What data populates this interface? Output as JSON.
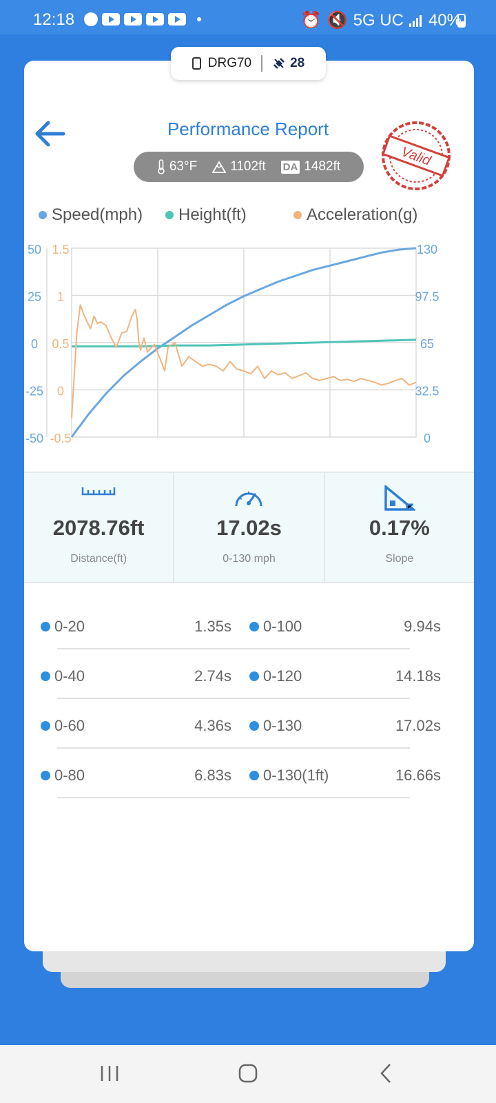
{
  "status_bar": {
    "time": "12:18",
    "network": "5G UC",
    "battery": "40%"
  },
  "device": {
    "name": "DRG70",
    "satellites": "28"
  },
  "header": {
    "title": "Performance Report",
    "stamp": "Valid"
  },
  "conditions": {
    "temperature": "63°F",
    "altitude": "1102ft",
    "da_label": "DA",
    "density_altitude": "1482ft"
  },
  "legend": {
    "speed": "Speed(mph)",
    "height": "Height(ft)",
    "acceleration": "Acceleration(g)"
  },
  "colors": {
    "speed": "#6aa7e0",
    "height": "#4fc4b8",
    "acceleration": "#f0b47e",
    "accent": "#2e7fd6"
  },
  "chart_data": {
    "type": "line",
    "axes": {
      "left_height": {
        "ticks": [
          "50",
          "25",
          "0",
          "-25",
          "-50"
        ],
        "range": [
          -50,
          50
        ]
      },
      "left_accel": {
        "ticks": [
          "1.5",
          "1",
          "0.5",
          "0",
          "-0.5"
        ],
        "range": [
          -0.5,
          1.5
        ]
      },
      "right_speed": {
        "ticks": [
          "130",
          "97.5",
          "65",
          "32.5",
          "0"
        ],
        "range": [
          0,
          130
        ]
      }
    },
    "grid": true,
    "series": [
      {
        "name": "Speed(mph)",
        "axis": "right_speed",
        "x": [
          0,
          0.05,
          0.1,
          0.15,
          0.2,
          0.25,
          0.3,
          0.35,
          0.4,
          0.45,
          0.5,
          0.55,
          0.6,
          0.65,
          0.7,
          0.75,
          0.8,
          0.85,
          0.9,
          0.95,
          1.0
        ],
        "y": [
          0,
          16,
          30,
          42,
          52,
          61,
          69,
          77,
          84,
          91,
          97,
          102,
          107,
          111,
          115,
          118,
          121,
          124,
          127,
          129,
          130
        ]
      },
      {
        "name": "Height(ft)",
        "axis": "left_height",
        "x": [
          0,
          0.1,
          0.2,
          0.3,
          0.4,
          0.5,
          0.6,
          0.7,
          0.8,
          0.9,
          1.0
        ],
        "y": [
          -2,
          -2,
          -2,
          -1.5,
          -1.5,
          -1,
          -0.5,
          0,
          0.5,
          1,
          1.5
        ]
      },
      {
        "name": "Acceleration(g)",
        "axis": "left_accel",
        "x": [
          0,
          0.005,
          0.015,
          0.025,
          0.035,
          0.045,
          0.055,
          0.065,
          0.075,
          0.085,
          0.1,
          0.115,
          0.13,
          0.145,
          0.16,
          0.175,
          0.185,
          0.19,
          0.195,
          0.2,
          0.21,
          0.22,
          0.24,
          0.26,
          0.27,
          0.28,
          0.3,
          0.32,
          0.34,
          0.36,
          0.38,
          0.4,
          0.42,
          0.44,
          0.46,
          0.48,
          0.5,
          0.52,
          0.54,
          0.56,
          0.58,
          0.6,
          0.62,
          0.64,
          0.66,
          0.68,
          0.7,
          0.72,
          0.74,
          0.76,
          0.78,
          0.8,
          0.82,
          0.84,
          0.86,
          0.88,
          0.9,
          0.92,
          0.94,
          0.96,
          0.98,
          1.0
        ],
        "y": [
          -0.3,
          0.0,
          0.6,
          0.9,
          0.8,
          0.72,
          0.65,
          0.78,
          0.7,
          0.72,
          0.68,
          0.55,
          0.45,
          0.6,
          0.62,
          0.78,
          0.85,
          0.75,
          0.5,
          0.42,
          0.55,
          0.4,
          0.48,
          0.3,
          0.2,
          0.45,
          0.5,
          0.25,
          0.35,
          0.3,
          0.25,
          0.27,
          0.25,
          0.2,
          0.3,
          0.22,
          0.2,
          0.17,
          0.25,
          0.12,
          0.2,
          0.16,
          0.18,
          0.12,
          0.15,
          0.18,
          0.12,
          0.1,
          0.12,
          0.14,
          0.1,
          0.11,
          0.09,
          0.12,
          0.1,
          0.08,
          0.05,
          0.07,
          0.1,
          0.12,
          0.05,
          0.08
        ]
      }
    ]
  },
  "metrics": [
    {
      "value": "2078.76ft",
      "label": "Distance(ft)",
      "icon": "ruler-icon"
    },
    {
      "value": "17.02s",
      "label": "0-130 mph",
      "icon": "speedometer-icon"
    },
    {
      "value": "0.17%",
      "label": "Slope",
      "icon": "slope-icon"
    }
  ],
  "splits": [
    {
      "left_label": "0-20",
      "left_value": "1.35s",
      "right_label": "0-100",
      "right_value": "9.94s"
    },
    {
      "left_label": "0-40",
      "left_value": "2.74s",
      "right_label": "0-120",
      "right_value": "14.18s"
    },
    {
      "left_label": "0-60",
      "left_value": "4.36s",
      "right_label": "0-130",
      "right_value": "17.02s"
    },
    {
      "left_label": "0-80",
      "left_value": "6.83s",
      "right_label": "0-130(1ft)",
      "right_value": "16.66s"
    }
  ]
}
